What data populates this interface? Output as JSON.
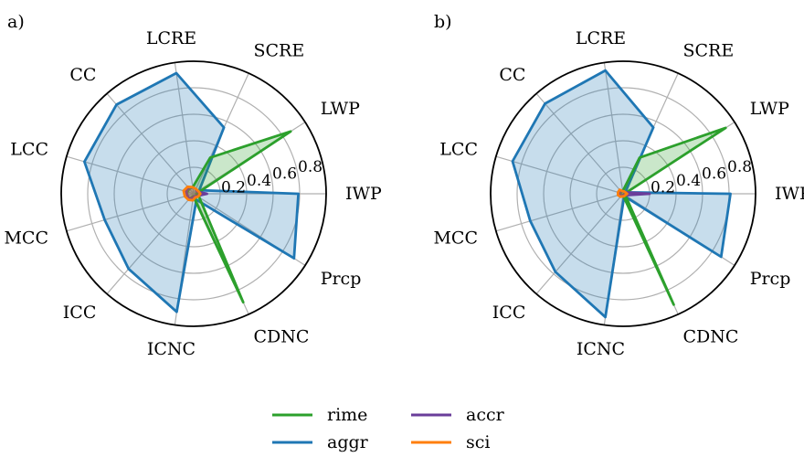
{
  "legend": {
    "placement": "bottom-center",
    "entries": [
      {
        "label": "rime",
        "color": "#2ca02c"
      },
      {
        "label": "accr",
        "color": "#6a3d9a"
      },
      {
        "label": "aggr",
        "color": "#1f77b4"
      },
      {
        "label": "sci",
        "color": "#ff7f0e"
      }
    ]
  },
  "chart_data": [
    {
      "type": "radar",
      "panel_label": "a)",
      "axes": [
        "IWP",
        "LWP",
        "SCRE",
        "LCRE",
        "CC",
        "LCC",
        "MCC",
        "ICC",
        "ICNC",
        "CDNC",
        "Prcp"
      ],
      "rlim": [
        0,
        1
      ],
      "radial_ticks": [
        0.2,
        0.4,
        0.6,
        0.8
      ],
      "grid": true,
      "series": [
        {
          "name": "aggr",
          "color": "#1f77b4",
          "values": [
            0.79,
            0.05,
            0.55,
            0.92,
            0.89,
            0.86,
            0.7,
            0.75,
            0.9,
            0.05,
            0.9
          ]
        },
        {
          "name": "rime",
          "color": "#2ca02c",
          "values": [
            0.02,
            0.87,
            0.3,
            0.05,
            0.05,
            0.05,
            0.05,
            0.05,
            0.02,
            0.9,
            0.05
          ]
        },
        {
          "name": "accr",
          "color": "#6a3d9a",
          "values": [
            0.1,
            0.03,
            0.04,
            0.05,
            0.06,
            0.06,
            0.05,
            0.05,
            0.03,
            0.02,
            0.03
          ]
        },
        {
          "name": "sci",
          "color": "#ff7f0e",
          "values": [
            0.05,
            0.04,
            0.04,
            0.05,
            0.07,
            0.08,
            0.07,
            0.06,
            0.05,
            0.03,
            0.04
          ]
        }
      ]
    },
    {
      "type": "radar",
      "panel_label": "b)",
      "axes": [
        "IWP",
        "LWP",
        "SCRE",
        "LCRE",
        "CC",
        "LCC",
        "MCC",
        "ICC",
        "ICNC",
        "CDNC",
        "Prcp"
      ],
      "rlim": [
        0,
        1
      ],
      "radial_ticks": [
        0.2,
        0.4,
        0.6,
        0.8
      ],
      "grid": true,
      "series": [
        {
          "name": "aggr",
          "color": "#1f77b4",
          "values": [
            0.81,
            0.02,
            0.55,
            0.94,
            0.9,
            0.87,
            0.73,
            0.78,
            0.94,
            0.02,
            0.88
          ]
        },
        {
          "name": "rime",
          "color": "#2ca02c",
          "values": [
            0.01,
            0.92,
            0.3,
            0.02,
            0.02,
            0.02,
            0.02,
            0.02,
            0.01,
            0.92,
            0.02
          ]
        },
        {
          "name": "accr",
          "color": "#6a3d9a",
          "values": [
            0.2,
            0.02,
            0.02,
            0.02,
            0.03,
            0.03,
            0.03,
            0.02,
            0.02,
            0.01,
            0.02
          ]
        },
        {
          "name": "sci",
          "color": "#ff7f0e",
          "values": [
            0.03,
            0.02,
            0.02,
            0.02,
            0.04,
            0.04,
            0.04,
            0.03,
            0.02,
            0.02,
            0.02
          ]
        }
      ]
    }
  ]
}
